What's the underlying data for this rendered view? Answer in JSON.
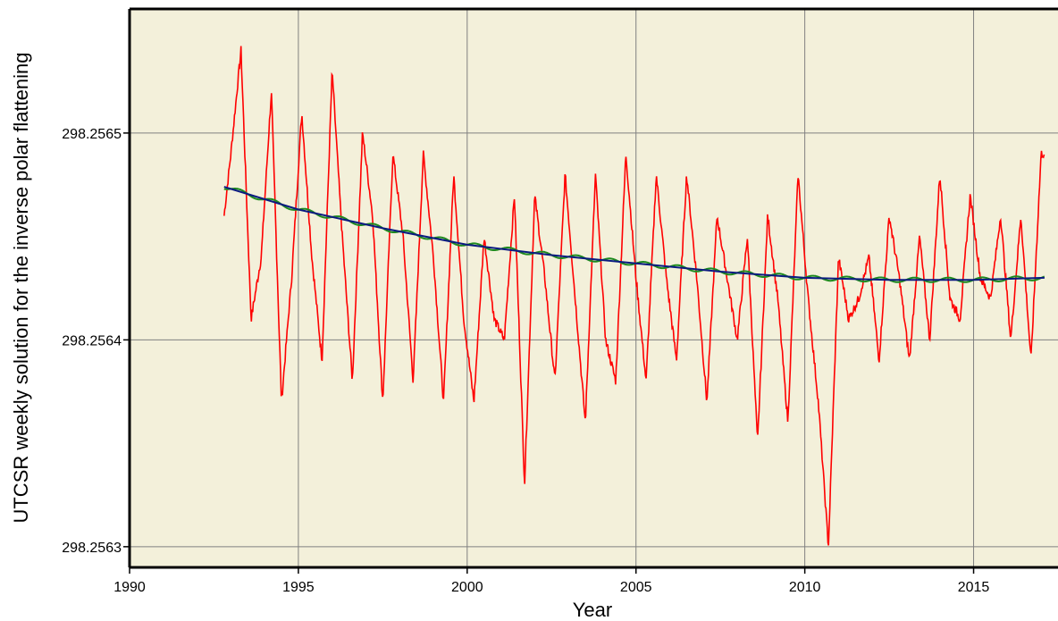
{
  "chart_data": {
    "type": "line",
    "title": "",
    "xlabel": "Year",
    "ylabel": "UTCSR weekly solution for the inverse polar flattening",
    "xlim": [
      1990,
      2017.5
    ],
    "ylim": [
      298.25629,
      298.25656
    ],
    "x_ticks": [
      "1990",
      "1995",
      "2000",
      "2005",
      "2010",
      "2015"
    ],
    "y_ticks": [
      "298.2563",
      "298.2564",
      "298.2565"
    ],
    "grid": true,
    "background_color": "#f3f0da",
    "series": [
      {
        "color": "#ff0000",
        "description_ref": "weekly solution",
        "x": [
          1992.8,
          1993.0,
          1993.3,
          1993.6,
          1993.9,
          1994.2,
          1994.5,
          1994.8,
          1995.1,
          1995.4,
          1995.7,
          1996.0,
          1996.3,
          1996.6,
          1996.9,
          1997.2,
          1997.5,
          1997.8,
          1998.1,
          1998.4,
          1998.7,
          1999.0,
          1999.3,
          1999.6,
          1999.9,
          2000.2,
          2000.5,
          2000.8,
          2001.1,
          2001.4,
          2001.7,
          2002.0,
          2002.3,
          2002.6,
          2002.9,
          2003.2,
          2003.5,
          2003.8,
          2004.1,
          2004.4,
          2004.7,
          2005.0,
          2005.3,
          2005.6,
          2005.9,
          2006.2,
          2006.5,
          2006.8,
          2007.1,
          2007.4,
          2007.7,
          2008.0,
          2008.3,
          2008.6,
          2008.9,
          2009.2,
          2009.5,
          2009.8,
          2010.1,
          2010.4,
          2010.7,
          2011.0,
          2011.3,
          2011.6,
          2011.9,
          2012.2,
          2012.5,
          2012.8,
          2013.1,
          2013.4,
          2013.7,
          2014.0,
          2014.3,
          2014.6,
          2014.9,
          2015.2,
          2015.5,
          2015.8,
          2016.1,
          2016.4,
          2016.7,
          2017.0,
          2017.1
        ],
        "y": [
          298.25646,
          298.25649,
          298.25654,
          298.25641,
          298.25644,
          298.25652,
          298.25637,
          298.25643,
          298.25651,
          298.25644,
          298.25639,
          298.25653,
          298.25645,
          298.25638,
          298.2565,
          298.25646,
          298.25637,
          298.25649,
          298.25645,
          298.25638,
          298.25649,
          298.25644,
          298.25637,
          298.25648,
          298.25641,
          298.25637,
          298.25645,
          298.25641,
          298.2564,
          298.25647,
          298.25633,
          298.25647,
          298.25643,
          298.25638,
          298.25648,
          298.25642,
          298.25636,
          298.25648,
          298.2564,
          298.25638,
          298.25649,
          298.25643,
          298.25638,
          298.25648,
          298.25643,
          298.25639,
          298.25648,
          298.25643,
          298.25637,
          298.25646,
          298.25643,
          298.2564,
          298.25645,
          298.25635,
          298.25646,
          298.25642,
          298.25636,
          298.25648,
          298.25642,
          298.25637,
          298.2563,
          298.25644,
          298.25641,
          298.25642,
          298.25644,
          298.25639,
          298.25646,
          298.25643,
          298.25639,
          298.25645,
          298.2564,
          298.25648,
          298.25642,
          298.25641,
          298.25647,
          298.25643,
          298.25642,
          298.25646,
          298.2564,
          298.25646,
          298.25639,
          298.25649,
          298.25649
        ]
      },
      {
        "color": "#1f8a1f",
        "description_ref": "seasonal fit",
        "mean_x": [
          1992.8,
          2017.1
        ],
        "amplitude": 1.1e-06,
        "phase_peak_year": 1993.25
      },
      {
        "color": "#0a1a80",
        "description_ref": "trend",
        "x": [
          1992.8,
          1995,
          1997.5,
          2000,
          2002.5,
          2005,
          2007.5,
          2010,
          2012.5,
          2015,
          2017.1
        ],
        "y": [
          298.256474,
          298.256463,
          298.256454,
          298.256446,
          298.256441,
          298.256437,
          298.256433,
          298.25643,
          298.256429,
          298.256429,
          298.25643
        ]
      }
    ]
  }
}
